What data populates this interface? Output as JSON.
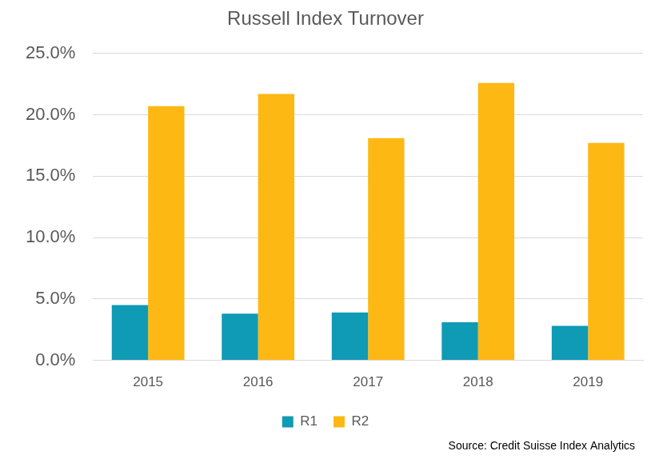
{
  "chart_data": {
    "type": "bar",
    "title": "Russell Index Turnover",
    "annotations": [
      "Source: Credit Suisse Index Analytics"
    ],
    "categories": [
      "2015",
      "2016",
      "2017",
      "2018",
      "2019"
    ],
    "series": [
      {
        "name": "R1",
        "color": "#0f9ab5",
        "values": [
          4.5,
          3.8,
          3.9,
          3.1,
          2.8
        ]
      },
      {
        "name": "R2",
        "color": "#fdb813",
        "values": [
          20.7,
          21.7,
          18.1,
          22.6,
          17.7
        ]
      }
    ],
    "ylim": [
      0,
      25
    ],
    "yticks": [
      {
        "value": 0,
        "label": "0.0%"
      },
      {
        "value": 5,
        "label": "5.0%"
      },
      {
        "value": 10,
        "label": "10.0%"
      },
      {
        "value": 15,
        "label": "15.0%"
      },
      {
        "value": 20,
        "label": "20.0%"
      },
      {
        "value": 25,
        "label": "25.0%"
      }
    ],
    "grid": true,
    "legend": "bottom"
  }
}
